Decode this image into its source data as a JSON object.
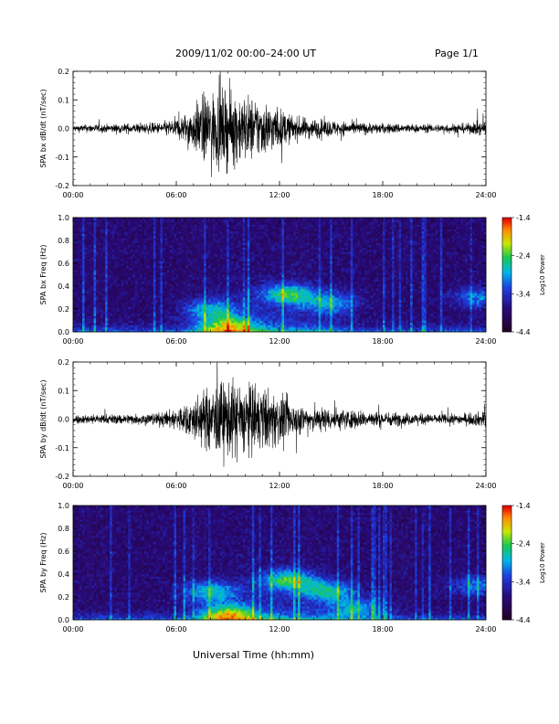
{
  "header": {
    "title": "2009/11/02  00:00–24:00 UT",
    "page": "Page 1/1"
  },
  "xlabel": "Universal Time (hh:mm)",
  "colors": {
    "trace": "#000000",
    "axis": "#000000"
  },
  "chart_data": [
    {
      "type": "line",
      "ylabel": "SPA bx dB/dt (nT/sec)",
      "xlim": [
        0,
        24
      ],
      "ylim": [
        -0.2,
        0.2
      ],
      "x_ticks": [
        "00:00",
        "06:00",
        "12:00",
        "18:00",
        "24:00"
      ],
      "y_ticks": [
        "-0.2",
        "-0.1",
        "0.0",
        "0.1",
        "0.2"
      ],
      "series": [
        {
          "x": [
            0,
            1,
            2,
            3,
            4,
            5,
            6,
            6.5,
            7,
            7.5,
            8,
            8.5,
            9,
            9.5,
            10,
            10.5,
            11,
            11.5,
            12,
            12.5,
            13,
            14,
            15,
            16,
            17,
            18,
            19,
            20,
            21,
            22,
            23,
            24
          ],
          "amplitude": [
            0.02,
            0.025,
            0.025,
            0.03,
            0.03,
            0.035,
            0.06,
            0.09,
            0.13,
            0.2,
            0.22,
            0.23,
            0.23,
            0.22,
            0.2,
            0.19,
            0.17,
            0.15,
            0.12,
            0.09,
            0.07,
            0.06,
            0.05,
            0.04,
            0.035,
            0.03,
            0.03,
            0.025,
            0.025,
            0.03,
            0.03,
            0.05
          ]
        }
      ]
    },
    {
      "type": "heatmap",
      "ylabel": "SPA bx Freq (Hz)",
      "xlim": [
        0,
        24
      ],
      "ylim": [
        0,
        1.0
      ],
      "x_ticks": [
        "00:00",
        "06:00",
        "12:00",
        "18:00",
        "24:00"
      ],
      "y_ticks": [
        "0.0",
        "0.2",
        "0.4",
        "0.6",
        "0.8",
        "1.0"
      ],
      "colorbar": {
        "label": "Log10 Power",
        "min": -4.4,
        "max": -1.4,
        "ticks": [
          "-1.4",
          "-2.4",
          "-3.4",
          "-4.4"
        ]
      },
      "features": [
        {
          "x": 9.0,
          "y": 0.05,
          "level": 0.85
        },
        {
          "x": 8.0,
          "y": 0.2,
          "level": 0.6
        },
        {
          "x": 12.5,
          "y": 0.33,
          "level": 0.8
        },
        {
          "x": 15.0,
          "y": 0.25,
          "level": 0.55
        },
        {
          "x": 23.6,
          "y": 0.3,
          "level": 0.5
        }
      ]
    },
    {
      "type": "line",
      "ylabel": "SPA by dB/dt (nT/sec)",
      "xlim": [
        0,
        24
      ],
      "ylim": [
        -0.2,
        0.2
      ],
      "x_ticks": [
        "00:00",
        "06:00",
        "12:00",
        "18:00",
        "24:00"
      ],
      "y_ticks": [
        "-0.2",
        "-0.1",
        "0.0",
        "0.1",
        "0.2"
      ],
      "series": [
        {
          "x": [
            0,
            1,
            2,
            3,
            4,
            5,
            5.5,
            6,
            6.5,
            7,
            7.5,
            8,
            8.5,
            9,
            9.5,
            10,
            10.5,
            11,
            11.5,
            12,
            12.5,
            13,
            14,
            15,
            16,
            17,
            18,
            19,
            20,
            21,
            22,
            23,
            24
          ],
          "amplitude": [
            0.025,
            0.03,
            0.03,
            0.03,
            0.035,
            0.04,
            0.05,
            0.07,
            0.09,
            0.13,
            0.16,
            0.2,
            0.23,
            0.23,
            0.23,
            0.22,
            0.21,
            0.19,
            0.17,
            0.15,
            0.12,
            0.09,
            0.08,
            0.07,
            0.06,
            0.05,
            0.045,
            0.04,
            0.035,
            0.03,
            0.03,
            0.035,
            0.05
          ]
        }
      ]
    },
    {
      "type": "heatmap",
      "ylabel": "SPA by Freq (Hz)",
      "xlim": [
        0,
        24
      ],
      "ylim": [
        0,
        1.0
      ],
      "x_ticks": [
        "00:00",
        "06:00",
        "12:00",
        "18:00",
        "24:00"
      ],
      "y_ticks": [
        "0.0",
        "0.2",
        "0.4",
        "0.6",
        "0.8",
        "1.0"
      ],
      "colorbar": {
        "label": "Log10 Power",
        "min": -4.4,
        "max": -1.4,
        "ticks": [
          "-1.4",
          "-2.4",
          "-3.4",
          "-4.4"
        ]
      },
      "features": [
        {
          "x": 9.0,
          "y": 0.05,
          "level": 0.9
        },
        {
          "x": 8.0,
          "y": 0.25,
          "level": 0.65
        },
        {
          "x": 12.5,
          "y": 0.35,
          "level": 0.8
        },
        {
          "x": 14.8,
          "y": 0.25,
          "level": 0.7
        },
        {
          "x": 16.5,
          "y": 0.1,
          "level": 0.55
        },
        {
          "x": 23.6,
          "y": 0.3,
          "level": 0.5
        }
      ]
    }
  ]
}
